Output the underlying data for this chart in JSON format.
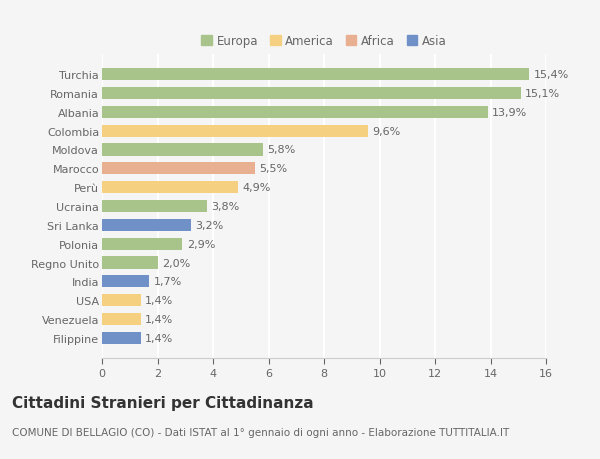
{
  "categories": [
    "Turchia",
    "Romania",
    "Albania",
    "Colombia",
    "Moldova",
    "Marocco",
    "Perù",
    "Ucraina",
    "Sri Lanka",
    "Polonia",
    "Regno Unito",
    "India",
    "USA",
    "Venezuela",
    "Filippine"
  ],
  "values": [
    15.4,
    15.1,
    13.9,
    9.6,
    5.8,
    5.5,
    4.9,
    3.8,
    3.2,
    2.9,
    2.0,
    1.7,
    1.4,
    1.4,
    1.4
  ],
  "labels": [
    "15,4%",
    "15,1%",
    "13,9%",
    "9,6%",
    "5,8%",
    "5,5%",
    "4,9%",
    "3,8%",
    "3,2%",
    "2,9%",
    "2,0%",
    "1,7%",
    "1,4%",
    "1,4%",
    "1,4%"
  ],
  "continents": [
    "Europa",
    "Europa",
    "Europa",
    "America",
    "Europa",
    "Africa",
    "America",
    "Europa",
    "Asia",
    "Europa",
    "Europa",
    "Asia",
    "America",
    "America",
    "Asia"
  ],
  "continent_colors": {
    "Europa": "#a8c48a",
    "America": "#f5d080",
    "Africa": "#e8b090",
    "Asia": "#7090c8"
  },
  "legend_order": [
    "Europa",
    "America",
    "Africa",
    "Asia"
  ],
  "xlim": [
    0,
    16
  ],
  "xticks": [
    0,
    2,
    4,
    6,
    8,
    10,
    12,
    14,
    16
  ],
  "title": "Cittadini Stranieri per Cittadinanza",
  "subtitle": "COMUNE DI BELLAGIO (CO) - Dati ISTAT al 1° gennaio di ogni anno - Elaborazione TUTTITALIA.IT",
  "bg_color": "#f5f5f5",
  "grid_color": "#ffffff",
  "bar_height": 0.65,
  "label_fontsize": 8,
  "tick_fontsize": 8,
  "title_fontsize": 11,
  "subtitle_fontsize": 7.5
}
